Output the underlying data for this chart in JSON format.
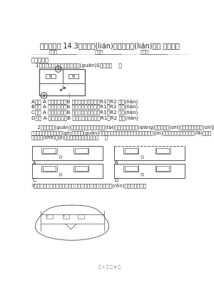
{
  "title": "九年級物理 14.3連接串聯(lián)電路和并聯(lián)電路 同步測試",
  "info_parts": [
    "姓名：________",
    "班級：________",
    "成績：________"
  ],
  "section1": "一、單選題",
  "q1_text": "1．如圖所示的電路中，為開關(guān)S閉合后（    ）",
  "q1_options": [
    "A．若 A 表是電流表，B 表是電壓表，則電阻R1、R2 并聯(lián)",
    "B．若 A 表是電流表，B 表是電壓表，則電阻R1、R2 串聯(lián)",
    "C．若 A 表是電壓表，B 表是電流表，則電阻R1、R2 并聯(lián)",
    "D．若 A 表是電壓表，B 表是電流表，則電阻R1、R2 串聯(lián)"
  ],
  "q2_lines": [
    "    2．聲控開關(guān)在傳感器附近處于斷開狀態(tài)。在接收到一定強(qiáng)度的聲音時(shí)會自動閉合一段時(shí)間，某平一地下通道兩",
    "端的入口處，各裝有一個(gè)聲控開關(guān)控制同一盞電燈，控制路行人不管從哪端進(jìn)入，電燈都能被通電而發(fā)光。下",
    "列符合設(shè)計(jì)要求的完全展示的電路是（    ）"
  ],
  "q3_text": "3．小花在家跟家里連接了如圖所示的電路，對該電路的認(rèn)識，不正確的是",
  "footer": "第 1 頁 共 8 頁",
  "bg_color": "#ffffff",
  "text_color": "#222222",
  "gray_color": "#888888",
  "title_fontsize": 7.0,
  "body_fontsize": 5.2,
  "section_fontsize": 6.0,
  "info_fontsize": 4.8
}
